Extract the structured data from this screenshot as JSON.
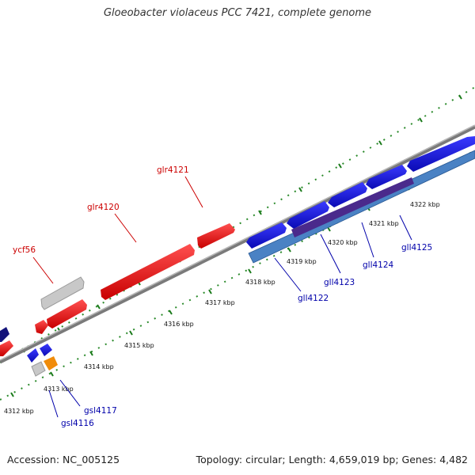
{
  "title": "Gloeobacter violaceus PCC 7421, complete genome",
  "footer": {
    "accession": "Accession: NC_005125",
    "summary": "Topology: circular; Length: 4,659,019 bp; Genes: 4,482"
  },
  "colors": {
    "forward_gene": "#e8141a",
    "reverse_gene": "#1414e0",
    "pseudo_gene": "#c8c8c8",
    "rna_gene": "#f08c0a",
    "dark_gene": "#14147a",
    "band_blue": "#4a82c4",
    "band_purple": "#4a2a8c",
    "backbone": "#8a8a8a",
    "tick": "#1a7a1a",
    "forward_label": "#cc0000",
    "reverse_label": "#0000aa"
  },
  "scale_labels": [
    "4312 kbp",
    "4313 kbp",
    "4314 kbp",
    "4315 kbp",
    "4316 kbp",
    "4317 kbp",
    "4318 kbp",
    "4319 kbp",
    "4320 kbp",
    "4321 kbp",
    "4322 kbp"
  ],
  "gene_labels": {
    "ycf56": "ycf56",
    "glr4120": "glr4120",
    "glr4121": "glr4121",
    "gll4122": "gll4122",
    "gll4123": "gll4123",
    "gll4124": "gll4124",
    "gll4125": "gll4125",
    "gsl4116": "gsl4116",
    "gsl4117": "gsl4117"
  }
}
